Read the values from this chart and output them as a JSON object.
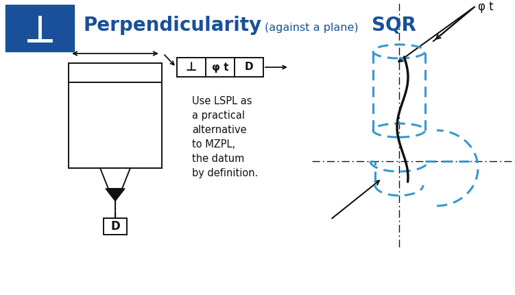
{
  "title_main": "Perpendicularity",
  "title_sub": "(against a plane)",
  "title_sqr": "SQR",
  "title_color": "#1a5099",
  "bg_box_color": "#1a5099",
  "blue_dashed_color": "#3399cc",
  "black_color": "#111111",
  "annotation_text": "Use LSPL as\na practical\nalternative\nto MZPL,\nthe datum\nby definition.",
  "phi_t_label": "φ t",
  "datum_label": "D",
  "tolerance_box_labels": [
    "⊥",
    "φ t",
    "D"
  ],
  "figw": 7.51,
  "figh": 4.3,
  "dpi": 100
}
